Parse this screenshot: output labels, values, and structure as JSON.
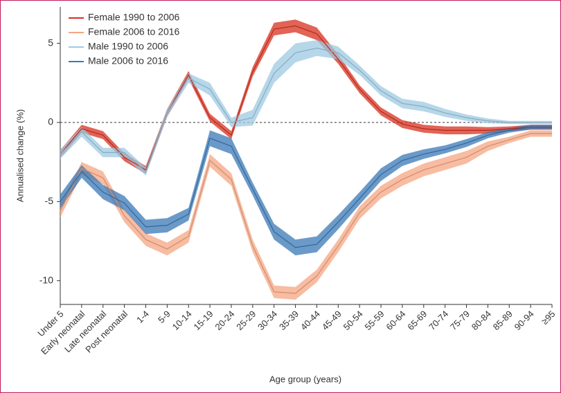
{
  "chart_data": {
    "type": "line",
    "categories": [
      "Under 5",
      "Early neonatal",
      "Late neonatal",
      "Post neonatal",
      "1-4",
      "5-9",
      "10-14",
      "15-19",
      "20-24",
      "25-29",
      "30-34",
      "35-39",
      "40-44",
      "45-49",
      "50-54",
      "55-59",
      "60-64",
      "65-69",
      "70-74",
      "75-79",
      "80-84",
      "85-89",
      "90-94",
      "≥95"
    ],
    "series": [
      {
        "name": "Female 1990 to 2006",
        "color": "#d7301f",
        "values": [
          -2.0,
          -0.4,
          -0.8,
          -2.2,
          -3.0,
          0.6,
          3.0,
          0.3,
          -0.8,
          3.2,
          5.9,
          6.1,
          5.6,
          4.0,
          2.1,
          0.7,
          -0.1,
          -0.4,
          -0.5,
          -0.5,
          -0.5,
          -0.4,
          -0.3,
          -0.3
        ],
        "lower": [
          -2.25,
          -0.65,
          -1.05,
          -2.45,
          -3.25,
          0.35,
          2.75,
          0.05,
          -1.05,
          2.9,
          5.5,
          5.7,
          5.2,
          3.7,
          1.85,
          0.45,
          -0.35,
          -0.65,
          -0.75,
          -0.75,
          -0.7,
          -0.55,
          -0.45,
          -0.45
        ],
        "upper": [
          -1.75,
          -0.15,
          -0.55,
          -1.95,
          -2.75,
          0.85,
          3.25,
          0.55,
          -0.55,
          3.5,
          6.3,
          6.5,
          6.0,
          4.3,
          2.35,
          0.95,
          0.15,
          -0.15,
          -0.25,
          -0.25,
          -0.3,
          -0.25,
          -0.15,
          -0.15
        ]
      },
      {
        "name": "Female 2006 to 2016",
        "color": "#f4a582",
        "values": [
          -5.6,
          -2.9,
          -3.5,
          -5.9,
          -7.4,
          -8.0,
          -7.2,
          -2.4,
          -3.6,
          -7.8,
          -10.7,
          -10.8,
          -9.7,
          -7.8,
          -5.7,
          -4.4,
          -3.6,
          -3.0,
          -2.6,
          -2.2,
          -1.5,
          -1.1,
          -0.7,
          -0.7
        ],
        "lower": [
          -6.0,
          -3.3,
          -3.9,
          -6.3,
          -7.8,
          -8.4,
          -7.6,
          -2.8,
          -4.0,
          -8.2,
          -11.1,
          -11.2,
          -10.1,
          -8.2,
          -6.1,
          -4.8,
          -4.0,
          -3.4,
          -3.0,
          -2.6,
          -1.8,
          -1.3,
          -0.9,
          -0.9
        ],
        "upper": [
          -5.2,
          -2.5,
          -3.1,
          -5.5,
          -7.0,
          -7.6,
          -6.8,
          -2.0,
          -3.2,
          -7.4,
          -10.3,
          -10.4,
          -9.3,
          -7.4,
          -5.3,
          -4.0,
          -3.2,
          -2.6,
          -2.2,
          -1.8,
          -1.2,
          -0.9,
          -0.5,
          -0.5
        ]
      },
      {
        "name": "Male 1990 to 2006",
        "color": "#9ecae1",
        "values": [
          -2.0,
          -0.6,
          -1.9,
          -1.9,
          -3.1,
          0.6,
          2.8,
          2.1,
          0.0,
          0.3,
          3.1,
          4.4,
          4.7,
          4.4,
          3.3,
          2.0,
          1.2,
          1.0,
          0.6,
          0.3,
          0.1,
          0.0,
          0.0,
          0.0
        ],
        "lower": [
          -2.3,
          -0.9,
          -2.2,
          -2.2,
          -3.35,
          0.35,
          2.5,
          1.7,
          -0.3,
          -0.2,
          2.5,
          3.8,
          4.2,
          4.0,
          3.0,
          1.7,
          0.9,
          0.7,
          0.35,
          0.1,
          -0.05,
          -0.1,
          -0.1,
          -0.1
        ],
        "upper": [
          -1.7,
          -0.3,
          -1.6,
          -1.6,
          -2.85,
          0.85,
          3.1,
          2.5,
          0.3,
          0.8,
          3.7,
          5.0,
          5.2,
          4.8,
          3.6,
          2.3,
          1.5,
          1.3,
          0.85,
          0.5,
          0.25,
          0.1,
          0.1,
          0.1
        ]
      },
      {
        "name": "Male 2006 to 2016",
        "color": "#3a78b5",
        "values": [
          -5.0,
          -3.1,
          -4.4,
          -5.1,
          -6.6,
          -6.5,
          -5.8,
          -1.0,
          -1.5,
          -4.2,
          -6.9,
          -7.9,
          -7.7,
          -6.3,
          -4.8,
          -3.3,
          -2.4,
          -2.0,
          -1.7,
          -1.3,
          -0.8,
          -0.5,
          -0.3,
          -0.3
        ],
        "lower": [
          -5.45,
          -3.5,
          -4.85,
          -5.55,
          -7.05,
          -6.95,
          -6.2,
          -1.5,
          -2.0,
          -4.6,
          -7.4,
          -8.4,
          -8.2,
          -6.75,
          -5.2,
          -3.7,
          -2.75,
          -2.3,
          -1.95,
          -1.55,
          -1.0,
          -0.65,
          -0.45,
          -0.45
        ],
        "upper": [
          -4.55,
          -2.7,
          -3.95,
          -4.65,
          -6.15,
          -6.05,
          -5.4,
          -0.5,
          -1.0,
          -3.8,
          -6.4,
          -7.4,
          -7.2,
          -5.85,
          -4.4,
          -2.9,
          -2.05,
          -1.7,
          -1.45,
          -1.05,
          -0.6,
          -0.35,
          -0.15,
          -0.15
        ]
      }
    ],
    "xlabel": "Age group (years)",
    "ylabel": "Annualised change (%)",
    "ylim": [
      -11.5,
      7.3
    ],
    "yticks": [
      -10,
      -5,
      0,
      5
    ],
    "hline": 0,
    "legend": "top-left"
  }
}
